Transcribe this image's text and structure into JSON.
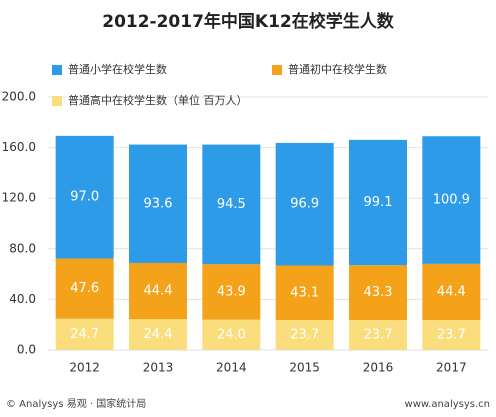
{
  "chart_data": {
    "type": "stacked-bar",
    "title": "2012-2017年中国K12在校学生人数",
    "categories": [
      "2012",
      "2013",
      "2014",
      "2015",
      "2016",
      "2017"
    ],
    "series": [
      {
        "name": "普通小学在校学生数",
        "color": "#2d9be8",
        "values": [
          97.0,
          93.6,
          94.5,
          96.9,
          99.1,
          100.9
        ],
        "value_labels": [
          "97.0",
          "93.6",
          "94.5",
          "96.9",
          "99.1",
          "100.9"
        ]
      },
      {
        "name": "普通初中在校学生数",
        "color": "#f5a21b",
        "values": [
          47.6,
          44.4,
          43.9,
          43.1,
          43.3,
          44.4
        ],
        "value_labels": [
          "47.6",
          "44.4",
          "43.9",
          "43.1",
          "43.3",
          "44.4"
        ]
      },
      {
        "name": "普通高中在校学生数（单位 百万人）",
        "color": "#fadd7d",
        "values": [
          24.7,
          24.4,
          24.0,
          23.7,
          23.7,
          23.7
        ],
        "value_labels": [
          "24.7",
          "24.4",
          "24.0",
          "23.7",
          "23.7",
          "23.7"
        ]
      }
    ],
    "ylim": [
      0,
      200
    ],
    "yticks": [
      {
        "value": 0,
        "label": "0.0"
      },
      {
        "value": 40,
        "label": "40.0"
      },
      {
        "value": 80,
        "label": "80.0"
      },
      {
        "value": 120,
        "label": "120.0"
      },
      {
        "value": 160,
        "label": "160.0"
      },
      {
        "value": 200,
        "label": "200.0"
      }
    ],
    "grid": true,
    "source": "© Analysys 易观 · 国家统计局",
    "website": "www.analysys.cn"
  }
}
